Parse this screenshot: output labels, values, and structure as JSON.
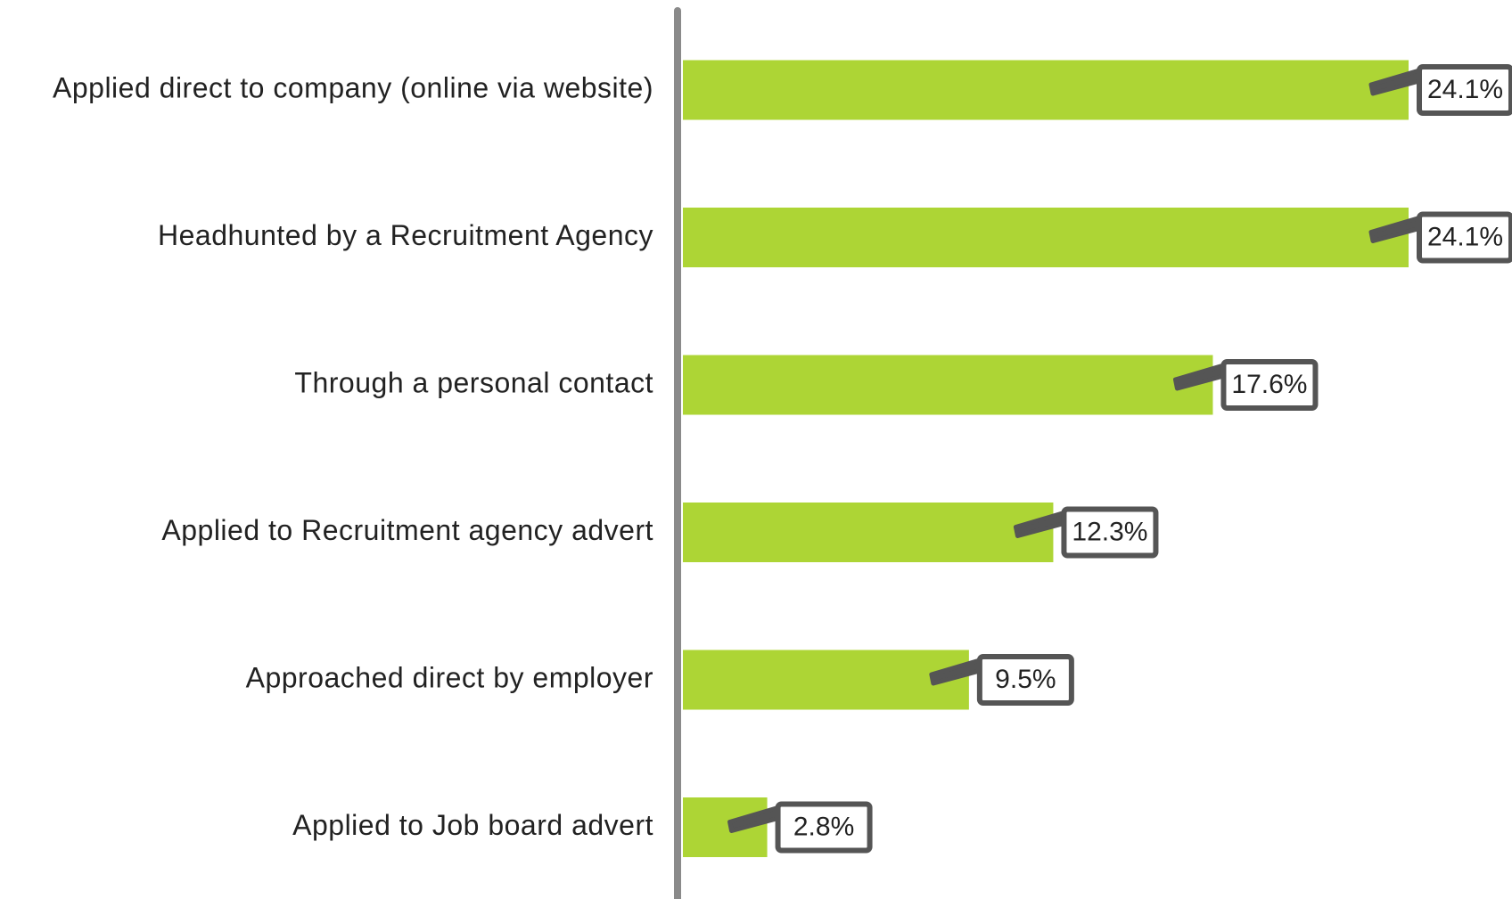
{
  "chart_data": {
    "type": "bar",
    "orientation": "horizontal",
    "categories": [
      "Applied direct to company (online via website)",
      "Headhunted by a Recruitment Agency",
      "Through a personal contact",
      "Applied to Recruitment agency advert",
      "Approached direct by employer",
      "Applied to Job board advert"
    ],
    "values": [
      24.1,
      24.1,
      17.6,
      12.3,
      9.5,
      2.8
    ],
    "value_labels": [
      "24.1%",
      "24.1%",
      "17.6%",
      "12.3%",
      "9.5%",
      "2.8%"
    ],
    "color": "#add535"
  }
}
